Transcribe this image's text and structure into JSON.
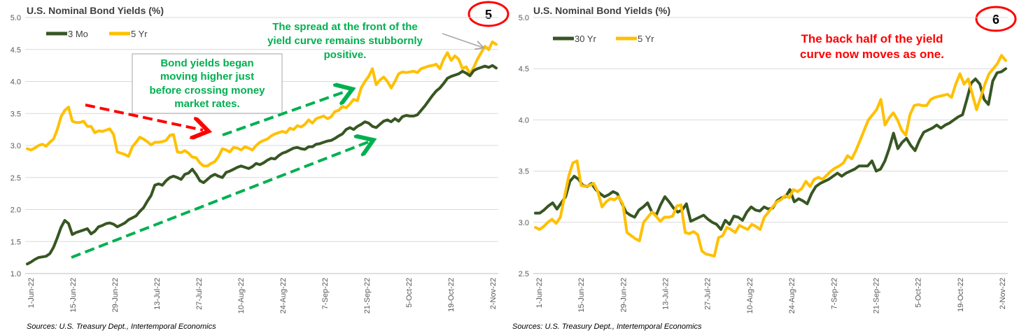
{
  "colors": {
    "series_3mo": "#375623",
    "series_5yr": "#FFC000",
    "series_30yr": "#375623",
    "grid": "#D9D9D9",
    "annotation_green": "#00B050",
    "annotation_red": "#FF0000",
    "badge": "#FF0000",
    "gray_arrow": "#A6A6A6"
  },
  "chart_data": [
    {
      "type": "line",
      "title": "U.S. Nominal Bond Yields (%)",
      "badge": "5",
      "source": "Sources: U.S. Treasury Dept., Intertemporal Economics",
      "ylim": [
        1.0,
        5.0
      ],
      "yticks": [
        "1.0",
        "1.5",
        "2.0",
        "2.5",
        "3.0",
        "3.5",
        "4.0",
        "4.5",
        "5.0"
      ],
      "xticks": [
        "1-Jun-22",
        "15-Jun-22",
        "29-Jun-22",
        "13-Jul-22",
        "27-Jul-22",
        "10-Aug-22",
        "24-Aug-22",
        "7-Sep-22",
        "21-Sep-22",
        "5-Oct-22",
        "19-Oct-22",
        "2-Nov-22"
      ],
      "legend_position": "top-left",
      "annotations": {
        "box_text": [
          "Bond yields began",
          "moving higher just",
          "before crossing money",
          "market rates."
        ],
        "spread_text": [
          "The spread at the front of the",
          "yield curve remains stubbornly",
          "positive."
        ]
      },
      "series": [
        {
          "name": "3 Mo",
          "values": [
            1.15,
            1.18,
            1.22,
            1.25,
            1.26,
            1.27,
            1.31,
            1.41,
            1.56,
            1.72,
            1.83,
            1.78,
            1.61,
            1.64,
            1.66,
            1.68,
            1.7,
            1.62,
            1.66,
            1.73,
            1.75,
            1.78,
            1.79,
            1.77,
            1.73,
            1.76,
            1.79,
            1.84,
            1.87,
            1.9,
            1.97,
            2.03,
            2.13,
            2.22,
            2.38,
            2.4,
            2.38,
            2.45,
            2.5,
            2.52,
            2.5,
            2.47,
            2.55,
            2.57,
            2.63,
            2.55,
            2.45,
            2.42,
            2.47,
            2.52,
            2.55,
            2.52,
            2.5,
            2.58,
            2.6,
            2.63,
            2.66,
            2.68,
            2.66,
            2.64,
            2.67,
            2.72,
            2.7,
            2.73,
            2.77,
            2.8,
            2.79,
            2.84,
            2.88,
            2.9,
            2.93,
            2.96,
            2.97,
            2.95,
            2.94,
            2.98,
            2.98,
            3.02,
            3.03,
            3.05,
            3.07,
            3.08,
            3.11,
            3.15,
            3.18,
            3.25,
            3.28,
            3.25,
            3.3,
            3.33,
            3.37,
            3.35,
            3.3,
            3.28,
            3.33,
            3.38,
            3.4,
            3.37,
            3.42,
            3.38,
            3.45,
            3.47,
            3.46,
            3.46,
            3.48,
            3.55,
            3.62,
            3.7,
            3.78,
            3.85,
            3.9,
            3.97,
            4.05,
            4.08,
            4.1,
            4.12,
            4.16,
            4.13,
            4.09,
            4.17,
            4.2,
            4.22,
            4.24,
            4.22,
            4.25,
            4.21
          ]
        },
        {
          "name": "5 Yr",
          "values": [
            2.95,
            2.93,
            2.96,
            3.0,
            3.02,
            2.99,
            3.05,
            3.1,
            3.25,
            3.45,
            3.55,
            3.6,
            3.38,
            3.36,
            3.36,
            3.38,
            3.3,
            3.3,
            3.2,
            3.23,
            3.22,
            3.24,
            3.26,
            3.17,
            2.9,
            2.88,
            2.86,
            2.83,
            2.98,
            3.05,
            3.13,
            3.1,
            3.06,
            3.01,
            3.05,
            3.05,
            3.06,
            3.08,
            3.16,
            3.17,
            2.9,
            2.89,
            2.92,
            2.88,
            2.82,
            2.81,
            2.73,
            2.68,
            2.68,
            2.72,
            2.75,
            2.83,
            2.95,
            2.93,
            2.9,
            2.97,
            2.96,
            2.93,
            2.98,
            2.96,
            2.93,
            3.0,
            3.05,
            3.08,
            3.1,
            3.15,
            3.18,
            3.2,
            3.22,
            3.2,
            3.27,
            3.25,
            3.31,
            3.29,
            3.33,
            3.4,
            3.35,
            3.42,
            3.44,
            3.46,
            3.42,
            3.45,
            3.53,
            3.55,
            3.61,
            3.59,
            3.65,
            3.72,
            3.7,
            3.9,
            4.0,
            4.08,
            4.2,
            3.95,
            4.02,
            4.07,
            4.0,
            3.9,
            4.0,
            4.12,
            4.15,
            4.14,
            4.15,
            4.16,
            4.14,
            4.2,
            4.22,
            4.24,
            4.25,
            4.27,
            4.2,
            4.35,
            4.45,
            4.33,
            4.4,
            4.35,
            4.2,
            4.23,
            4.12,
            4.22,
            4.35,
            4.45,
            4.55,
            4.5,
            4.62,
            4.58
          ]
        }
      ]
    },
    {
      "type": "line",
      "title": "U.S. Nominal Bond Yields (%)",
      "badge": "6",
      "source": "Sources: U.S. Treasury Dept., Intertemporal Economics",
      "ylim": [
        2.5,
        5.0
      ],
      "yticks": [
        "2.5",
        "3.0",
        "3.5",
        "4.0",
        "4.5",
        "5.0"
      ],
      "xticks": [
        "1-Jun-22",
        "15-Jun-22",
        "29-Jun-22",
        "13-Jul-22",
        "27-Jul-22",
        "10-Aug-22",
        "24-Aug-22",
        "7-Sep-22",
        "21-Sep-22",
        "5-Oct-22",
        "19-Oct-22",
        "2-Nov-22"
      ],
      "legend_position": "top-left",
      "annotations": {
        "headline": [
          "The back half of the yield",
          "curve now moves as one."
        ]
      },
      "series": [
        {
          "name": "30 Yr",
          "values": [
            3.09,
            3.09,
            3.12,
            3.16,
            3.19,
            3.13,
            3.19,
            3.25,
            3.4,
            3.45,
            3.42,
            3.36,
            3.35,
            3.38,
            3.32,
            3.28,
            3.25,
            3.27,
            3.3,
            3.28,
            3.19,
            3.1,
            3.07,
            3.05,
            3.12,
            3.15,
            3.19,
            3.1,
            3.07,
            3.17,
            3.25,
            3.2,
            3.14,
            3.1,
            3.12,
            3.18,
            3.01,
            3.03,
            3.05,
            3.07,
            3.03,
            3.0,
            2.98,
            2.93,
            3.02,
            2.98,
            3.06,
            3.05,
            3.02,
            3.1,
            3.15,
            3.12,
            3.11,
            3.15,
            3.13,
            3.14,
            3.21,
            3.24,
            3.25,
            3.32,
            3.2,
            3.23,
            3.21,
            3.18,
            3.28,
            3.35,
            3.38,
            3.4,
            3.42,
            3.45,
            3.48,
            3.45,
            3.48,
            3.5,
            3.52,
            3.55,
            3.55,
            3.55,
            3.6,
            3.5,
            3.52,
            3.6,
            3.72,
            3.87,
            3.72,
            3.78,
            3.82,
            3.75,
            3.7,
            3.8,
            3.88,
            3.9,
            3.92,
            3.95,
            3.92,
            3.95,
            3.97,
            4.0,
            4.03,
            4.05,
            4.2,
            4.36,
            4.4,
            4.35,
            4.2,
            4.15,
            4.38,
            4.46,
            4.47,
            4.5
          ]
        },
        {
          "name": "5 Yr",
          "values": [
            2.95,
            2.93,
            2.96,
            3.0,
            3.03,
            2.99,
            3.05,
            3.25,
            3.45,
            3.58,
            3.6,
            3.36,
            3.35,
            3.36,
            3.38,
            3.3,
            3.15,
            3.2,
            3.23,
            3.22,
            3.25,
            3.18,
            2.9,
            2.87,
            2.84,
            2.82,
            3.0,
            3.05,
            3.1,
            3.06,
            3.01,
            3.05,
            3.05,
            3.06,
            3.16,
            3.17,
            2.9,
            2.89,
            2.91,
            2.88,
            2.72,
            2.69,
            2.68,
            2.67,
            2.85,
            2.87,
            2.95,
            2.93,
            2.9,
            2.97,
            2.95,
            2.93,
            2.98,
            2.96,
            2.93,
            3.05,
            3.1,
            3.15,
            3.2,
            3.22,
            3.26,
            3.24,
            3.32,
            3.3,
            3.33,
            3.4,
            3.35,
            3.42,
            3.44,
            3.42,
            3.46,
            3.5,
            3.53,
            3.55,
            3.58,
            3.65,
            3.62,
            3.7,
            3.8,
            3.9,
            4.0,
            4.05,
            4.1,
            4.2,
            3.95,
            4.02,
            4.07,
            4.0,
            3.9,
            3.85,
            4.05,
            4.14,
            4.15,
            4.14,
            4.14,
            4.2,
            4.22,
            4.23,
            4.24,
            4.25,
            4.22,
            4.35,
            4.45,
            4.35,
            4.4,
            4.25,
            4.1,
            4.22,
            4.35,
            4.45,
            4.5,
            4.55,
            4.63,
            4.58
          ]
        }
      ]
    }
  ]
}
